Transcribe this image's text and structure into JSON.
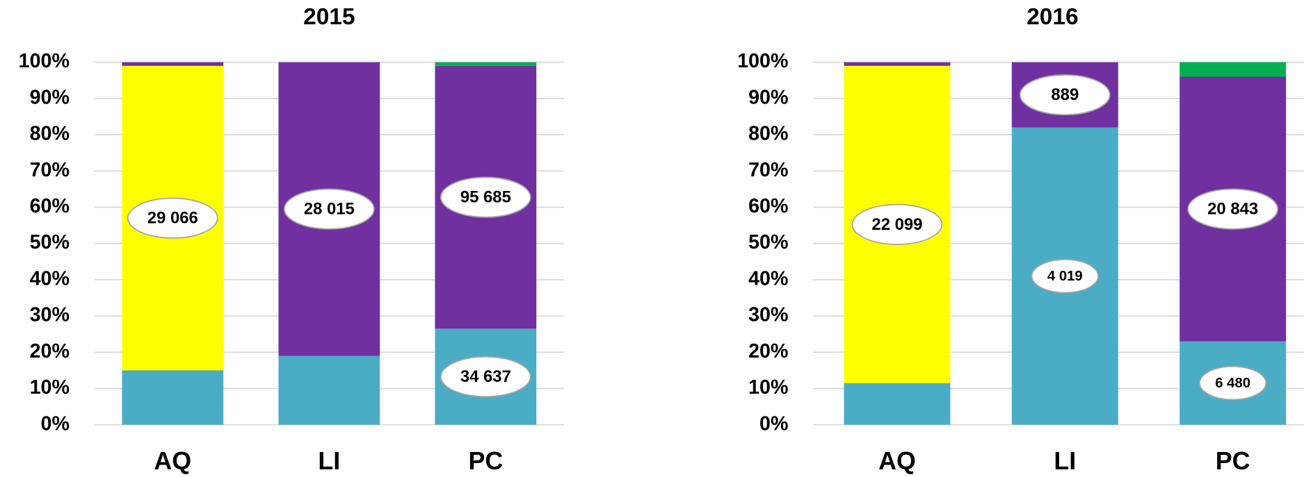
{
  "chart_data": [
    {
      "type": "bar",
      "stacked": true,
      "title": "2015",
      "categories": [
        "AQ",
        "LI",
        "PC"
      ],
      "series": [
        {
          "color": "#4BACC6",
          "values": [
            15,
            19,
            26.5
          ]
        },
        {
          "color": "#FFFF00",
          "values": [
            84,
            0,
            0
          ]
        },
        {
          "color": "#7030A0",
          "values": [
            1,
            81,
            72.5
          ]
        },
        {
          "color": "#00B050",
          "values": [
            0,
            0,
            1
          ]
        }
      ],
      "annotations": [
        {
          "text": "29 066",
          "category": "AQ",
          "color": "#FFFF00"
        },
        {
          "text": "28 015",
          "category": "LI",
          "color": "#7030A0"
        },
        {
          "text": "95 685",
          "category": "PC",
          "color": "#7030A0"
        },
        {
          "text": "34 637",
          "category": "PC",
          "color": "#4BACC6"
        }
      ],
      "ylim": [
        0,
        100
      ],
      "yticks": [
        {
          "value": 0,
          "label": "0%"
        },
        {
          "value": 10,
          "label": "10%"
        },
        {
          "value": 20,
          "label": "20%"
        },
        {
          "value": 30,
          "label": "30%"
        },
        {
          "value": 40,
          "label": "40%"
        },
        {
          "value": 50,
          "label": "50%"
        },
        {
          "value": 60,
          "label": "60%"
        },
        {
          "value": 70,
          "label": "70%"
        },
        {
          "value": 80,
          "label": "80%"
        },
        {
          "value": 90,
          "label": "90%"
        },
        {
          "value": 100,
          "label": "100%"
        }
      ],
      "grid": true
    },
    {
      "type": "bar",
      "stacked": true,
      "title": "2016",
      "categories": [
        "AQ",
        "LI",
        "PC"
      ],
      "series": [
        {
          "color": "#4BACC6",
          "values": [
            11.5,
            82,
            23
          ]
        },
        {
          "color": "#FFFF00",
          "values": [
            87.5,
            0,
            0
          ]
        },
        {
          "color": "#7030A0",
          "values": [
            1,
            18,
            73
          ]
        },
        {
          "color": "#00B050",
          "values": [
            0,
            0,
            4
          ]
        }
      ],
      "annotations": [
        {
          "text": "22 099",
          "category": "AQ",
          "color": "#FFFF00"
        },
        {
          "text": "889",
          "category": "LI",
          "color": "#7030A0"
        },
        {
          "text": "4 019",
          "category": "LI",
          "color": "#4BACC6"
        },
        {
          "text": "20 843",
          "category": "PC",
          "color": "#7030A0"
        },
        {
          "text": "6 480",
          "category": "PC",
          "color": "#4BACC6"
        }
      ],
      "ylim": [
        0,
        100
      ],
      "yticks": [
        {
          "value": 0,
          "label": "0%"
        },
        {
          "value": 10,
          "label": "10%"
        },
        {
          "value": 20,
          "label": "20%"
        },
        {
          "value": 30,
          "label": "30%"
        },
        {
          "value": 40,
          "label": "40%"
        },
        {
          "value": 50,
          "label": "50%"
        },
        {
          "value": 60,
          "label": "60%"
        },
        {
          "value": 70,
          "label": "70%"
        },
        {
          "value": 80,
          "label": "80%"
        },
        {
          "value": 90,
          "label": "90%"
        },
        {
          "value": 100,
          "label": "100%"
        }
      ],
      "grid": true
    }
  ]
}
